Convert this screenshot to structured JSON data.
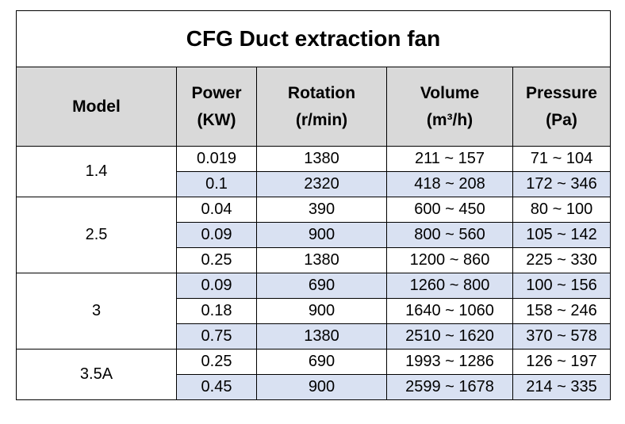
{
  "title": "CFG Duct extraction fan",
  "headers": {
    "model": "Model",
    "power": [
      "Power",
      "(KW)"
    ],
    "rotation": [
      "Rotation",
      "(r/min)"
    ],
    "volume": [
      "Volume",
      "(m³/h)"
    ],
    "pressure": [
      "Pressure",
      "(Pa)"
    ]
  },
  "groups": [
    {
      "model": "1.4",
      "rows": [
        {
          "power": "0.019",
          "rotation": "1380",
          "volume": "211 ~ 157",
          "pressure": "71 ~ 104",
          "shaded": false
        },
        {
          "power": "0.1",
          "rotation": "2320",
          "volume": "418 ~ 208",
          "pressure": "172 ~ 346",
          "shaded": true
        }
      ]
    },
    {
      "model": "2.5",
      "rows": [
        {
          "power": "0.04",
          "rotation": "390",
          "volume": "600 ~ 450",
          "pressure": "80 ~ 100",
          "shaded": false
        },
        {
          "power": "0.09",
          "rotation": "900",
          "volume": "800 ~ 560",
          "pressure": "105 ~ 142",
          "shaded": true
        },
        {
          "power": "0.25",
          "rotation": "1380",
          "volume": "1200 ~ 860",
          "pressure": "225 ~ 330",
          "shaded": false
        }
      ]
    },
    {
      "model": "3",
      "rows": [
        {
          "power": "0.09",
          "rotation": "690",
          "volume": "1260 ~ 800",
          "pressure": "100 ~ 156",
          "shaded": true
        },
        {
          "power": "0.18",
          "rotation": "900",
          "volume": "1640 ~ 1060",
          "pressure": "158 ~ 246",
          "shaded": false
        },
        {
          "power": "0.75",
          "rotation": "1380",
          "volume": "2510 ~ 1620",
          "pressure": "370 ~ 578",
          "shaded": true
        }
      ]
    },
    {
      "model": "3.5A",
      "rows": [
        {
          "power": "0.25",
          "rotation": "690",
          "volume": "1993 ~ 1286",
          "pressure": "126 ~ 197",
          "shaded": false
        },
        {
          "power": "0.45",
          "rotation": "900",
          "volume": "2599 ~ 1678",
          "pressure": "214 ~ 335",
          "shaded": true
        }
      ]
    }
  ]
}
